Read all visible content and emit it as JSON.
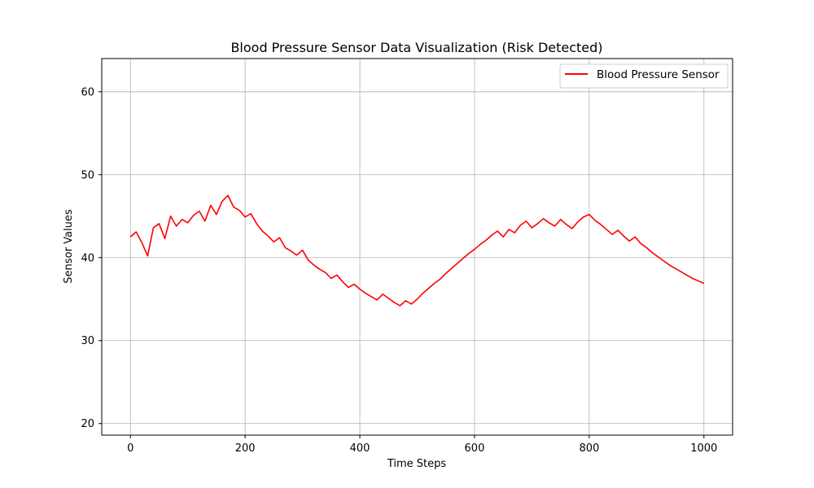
{
  "chart_data": {
    "type": "line",
    "title": "Blood Pressure Sensor Data Visualization (Risk Detected)",
    "xlabel": "Time Steps",
    "ylabel": "Sensor Values",
    "xlim": [
      -50,
      1050
    ],
    "ylim": [
      18.6,
      64.0
    ],
    "xticks": [
      0,
      200,
      400,
      600,
      800,
      1000
    ],
    "xtick_labels": [
      "0",
      "200",
      "400",
      "600",
      "800",
      "1000"
    ],
    "yticks": [
      20,
      30,
      40,
      50,
      60
    ],
    "ytick_labels": [
      "20",
      "30",
      "40",
      "50",
      "60"
    ],
    "grid": true,
    "legend": "top-right",
    "series": [
      {
        "name": "Blood Pressure Sensor",
        "color": "#ff0000",
        "x": [
          0,
          10,
          20,
          30,
          40,
          50,
          60,
          70,
          80,
          90,
          100,
          110,
          120,
          130,
          140,
          150,
          160,
          170,
          180,
          190,
          200,
          210,
          220,
          230,
          240,
          250,
          260,
          270,
          280,
          290,
          300,
          310,
          320,
          330,
          340,
          350,
          360,
          370,
          380,
          390,
          400,
          410,
          420,
          430,
          440,
          450,
          460,
          470,
          480,
          490,
          500,
          510,
          520,
          530,
          540,
          550,
          560,
          570,
          580,
          590,
          600,
          610,
          620,
          630,
          640,
          650,
          660,
          670,
          680,
          690,
          700,
          710,
          720,
          730,
          740,
          750,
          760,
          770,
          780,
          790,
          800,
          810,
          820,
          830,
          840,
          850,
          860,
          870,
          880,
          890,
          900,
          910,
          920,
          930,
          940,
          950,
          960,
          970,
          980,
          990,
          1000
        ],
        "y": [
          42.5,
          43.1,
          41.8,
          40.2,
          43.6,
          44.1,
          42.3,
          45.0,
          43.8,
          44.6,
          44.2,
          45.1,
          45.6,
          44.4,
          46.3,
          45.2,
          46.8,
          47.5,
          46.1,
          45.7,
          44.9,
          45.3,
          44.1,
          43.2,
          42.6,
          41.9,
          42.4,
          41.2,
          40.8,
          40.3,
          40.9,
          39.7,
          39.1,
          38.6,
          38.2,
          37.5,
          37.9,
          37.1,
          36.4,
          36.8,
          36.2,
          35.7,
          35.3,
          34.9,
          35.6,
          35.1,
          34.6,
          34.2,
          34.8,
          34.4,
          35.0,
          35.7,
          36.3,
          36.9,
          37.4,
          38.1,
          38.7,
          39.3,
          39.9,
          40.5,
          41.0,
          41.6,
          42.1,
          42.7,
          43.2,
          42.5,
          43.4,
          43.0,
          43.9,
          44.4,
          43.6,
          44.1,
          44.7,
          44.2,
          43.8,
          44.6,
          44.0,
          43.5,
          44.3,
          44.9,
          45.2,
          44.5,
          44.0,
          43.4,
          42.8,
          43.3,
          42.6,
          42.0,
          42.5,
          41.7,
          41.2,
          40.6,
          40.1,
          39.6,
          39.1,
          38.7,
          38.3,
          37.9,
          37.5,
          37.2,
          36.9
        ]
      }
    ]
  }
}
